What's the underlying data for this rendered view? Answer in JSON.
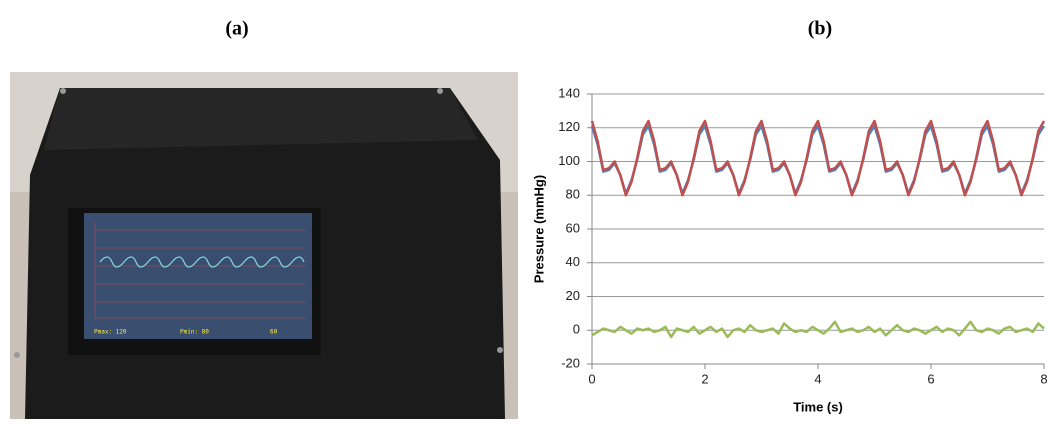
{
  "photo": {
    "label": "(a)",
    "screen": {
      "pmax": "Pmax: 120",
      "pmin": "Pmin: 80",
      "rate": "60"
    }
  },
  "chart_data": {
    "type": "line",
    "label": "(b)",
    "x_label": "Time (s)",
    "y_label": "Pressure (mmHg)",
    "x": [
      0,
      0.1,
      0.2,
      0.3,
      0.4,
      0.5,
      0.6,
      0.7,
      0.8,
      0.9,
      1,
      1.1,
      1.2,
      1.3,
      1.4,
      1.5,
      1.6,
      1.7,
      1.8,
      1.9,
      2,
      2.1,
      2.2,
      2.3,
      2.4,
      2.5,
      2.6,
      2.7,
      2.8,
      2.9,
      3,
      3.1,
      3.2,
      3.3,
      3.4,
      3.5,
      3.6,
      3.7,
      3.8,
      3.9,
      4,
      4.1,
      4.2,
      4.3,
      4.4,
      4.5,
      4.6,
      4.7,
      4.8,
      4.9,
      5,
      5.1,
      5.2,
      5.3,
      5.4,
      5.5,
      5.6,
      5.7,
      5.8,
      5.9,
      6,
      6.1,
      6.2,
      6.3,
      6.4,
      6.5,
      6.6,
      6.7,
      6.8,
      6.9,
      7,
      7.1,
      7.2,
      7.3,
      7.4,
      7.5,
      7.6,
      7.7,
      7.8,
      7.9,
      8
    ],
    "series": [
      {
        "color": "#4f81bd",
        "values": [
          121,
          110,
          94,
          95,
          99,
          92,
          81,
          89,
          101,
          116,
          121,
          110,
          94,
          95,
          99,
          92,
          81,
          89,
          101,
          116,
          121,
          110,
          94,
          95,
          99,
          92,
          81,
          89,
          101,
          116,
          121,
          110,
          94,
          95,
          99,
          92,
          81,
          89,
          101,
          116,
          121,
          110,
          94,
          95,
          99,
          92,
          81,
          89,
          101,
          116,
          121,
          110,
          94,
          95,
          99,
          92,
          81,
          89,
          101,
          116,
          121,
          110,
          94,
          95,
          99,
          92,
          81,
          89,
          101,
          116,
          121,
          110,
          94,
          95,
          99,
          92,
          81,
          89,
          101,
          116,
          121
        ]
      },
      {
        "color": "#c0504d",
        "values": [
          124,
          112,
          95,
          96,
          100,
          92,
          80,
          88,
          102,
          118,
          124,
          112,
          95,
          96,
          100,
          92,
          80,
          88,
          102,
          118,
          124,
          112,
          95,
          96,
          100,
          92,
          80,
          88,
          102,
          118,
          124,
          112,
          95,
          96,
          100,
          92,
          80,
          88,
          102,
          118,
          124,
          112,
          95,
          96,
          100,
          92,
          80,
          88,
          102,
          118,
          124,
          112,
          95,
          96,
          100,
          92,
          80,
          88,
          102,
          118,
          124,
          112,
          95,
          96,
          100,
          92,
          80,
          88,
          102,
          118,
          124,
          112,
          95,
          96,
          100,
          92,
          80,
          88,
          102,
          118,
          124
        ]
      },
      {
        "color": "#9bbb59",
        "values": [
          -3,
          -1,
          1,
          0,
          -1,
          2,
          0,
          -2,
          1,
          0,
          1,
          -1,
          0,
          2,
          -4,
          1,
          0,
          -1,
          2,
          -2,
          0,
          2,
          -1,
          1,
          -4,
          0,
          1,
          -1,
          3,
          0,
          -1,
          0,
          1,
          -2,
          4,
          1,
          -1,
          0,
          -1,
          2,
          0,
          -2,
          1,
          5,
          -1,
          0,
          1,
          -1,
          0,
          2,
          -1,
          1,
          -3,
          0,
          3,
          0,
          -1,
          1,
          0,
          -2,
          0,
          2,
          -1,
          1,
          0,
          -3,
          1,
          5,
          0,
          -1,
          1,
          0,
          -2,
          1,
          2,
          -1,
          0,
          1,
          -1,
          4,
          1
        ]
      }
    ],
    "xlim": [
      0,
      8
    ],
    "ylim": [
      -20,
      140
    ],
    "xticks": [
      0,
      2,
      4,
      6,
      8
    ],
    "yticks": [
      -20,
      0,
      20,
      40,
      60,
      80,
      100,
      120,
      140
    ],
    "grid": true
  }
}
